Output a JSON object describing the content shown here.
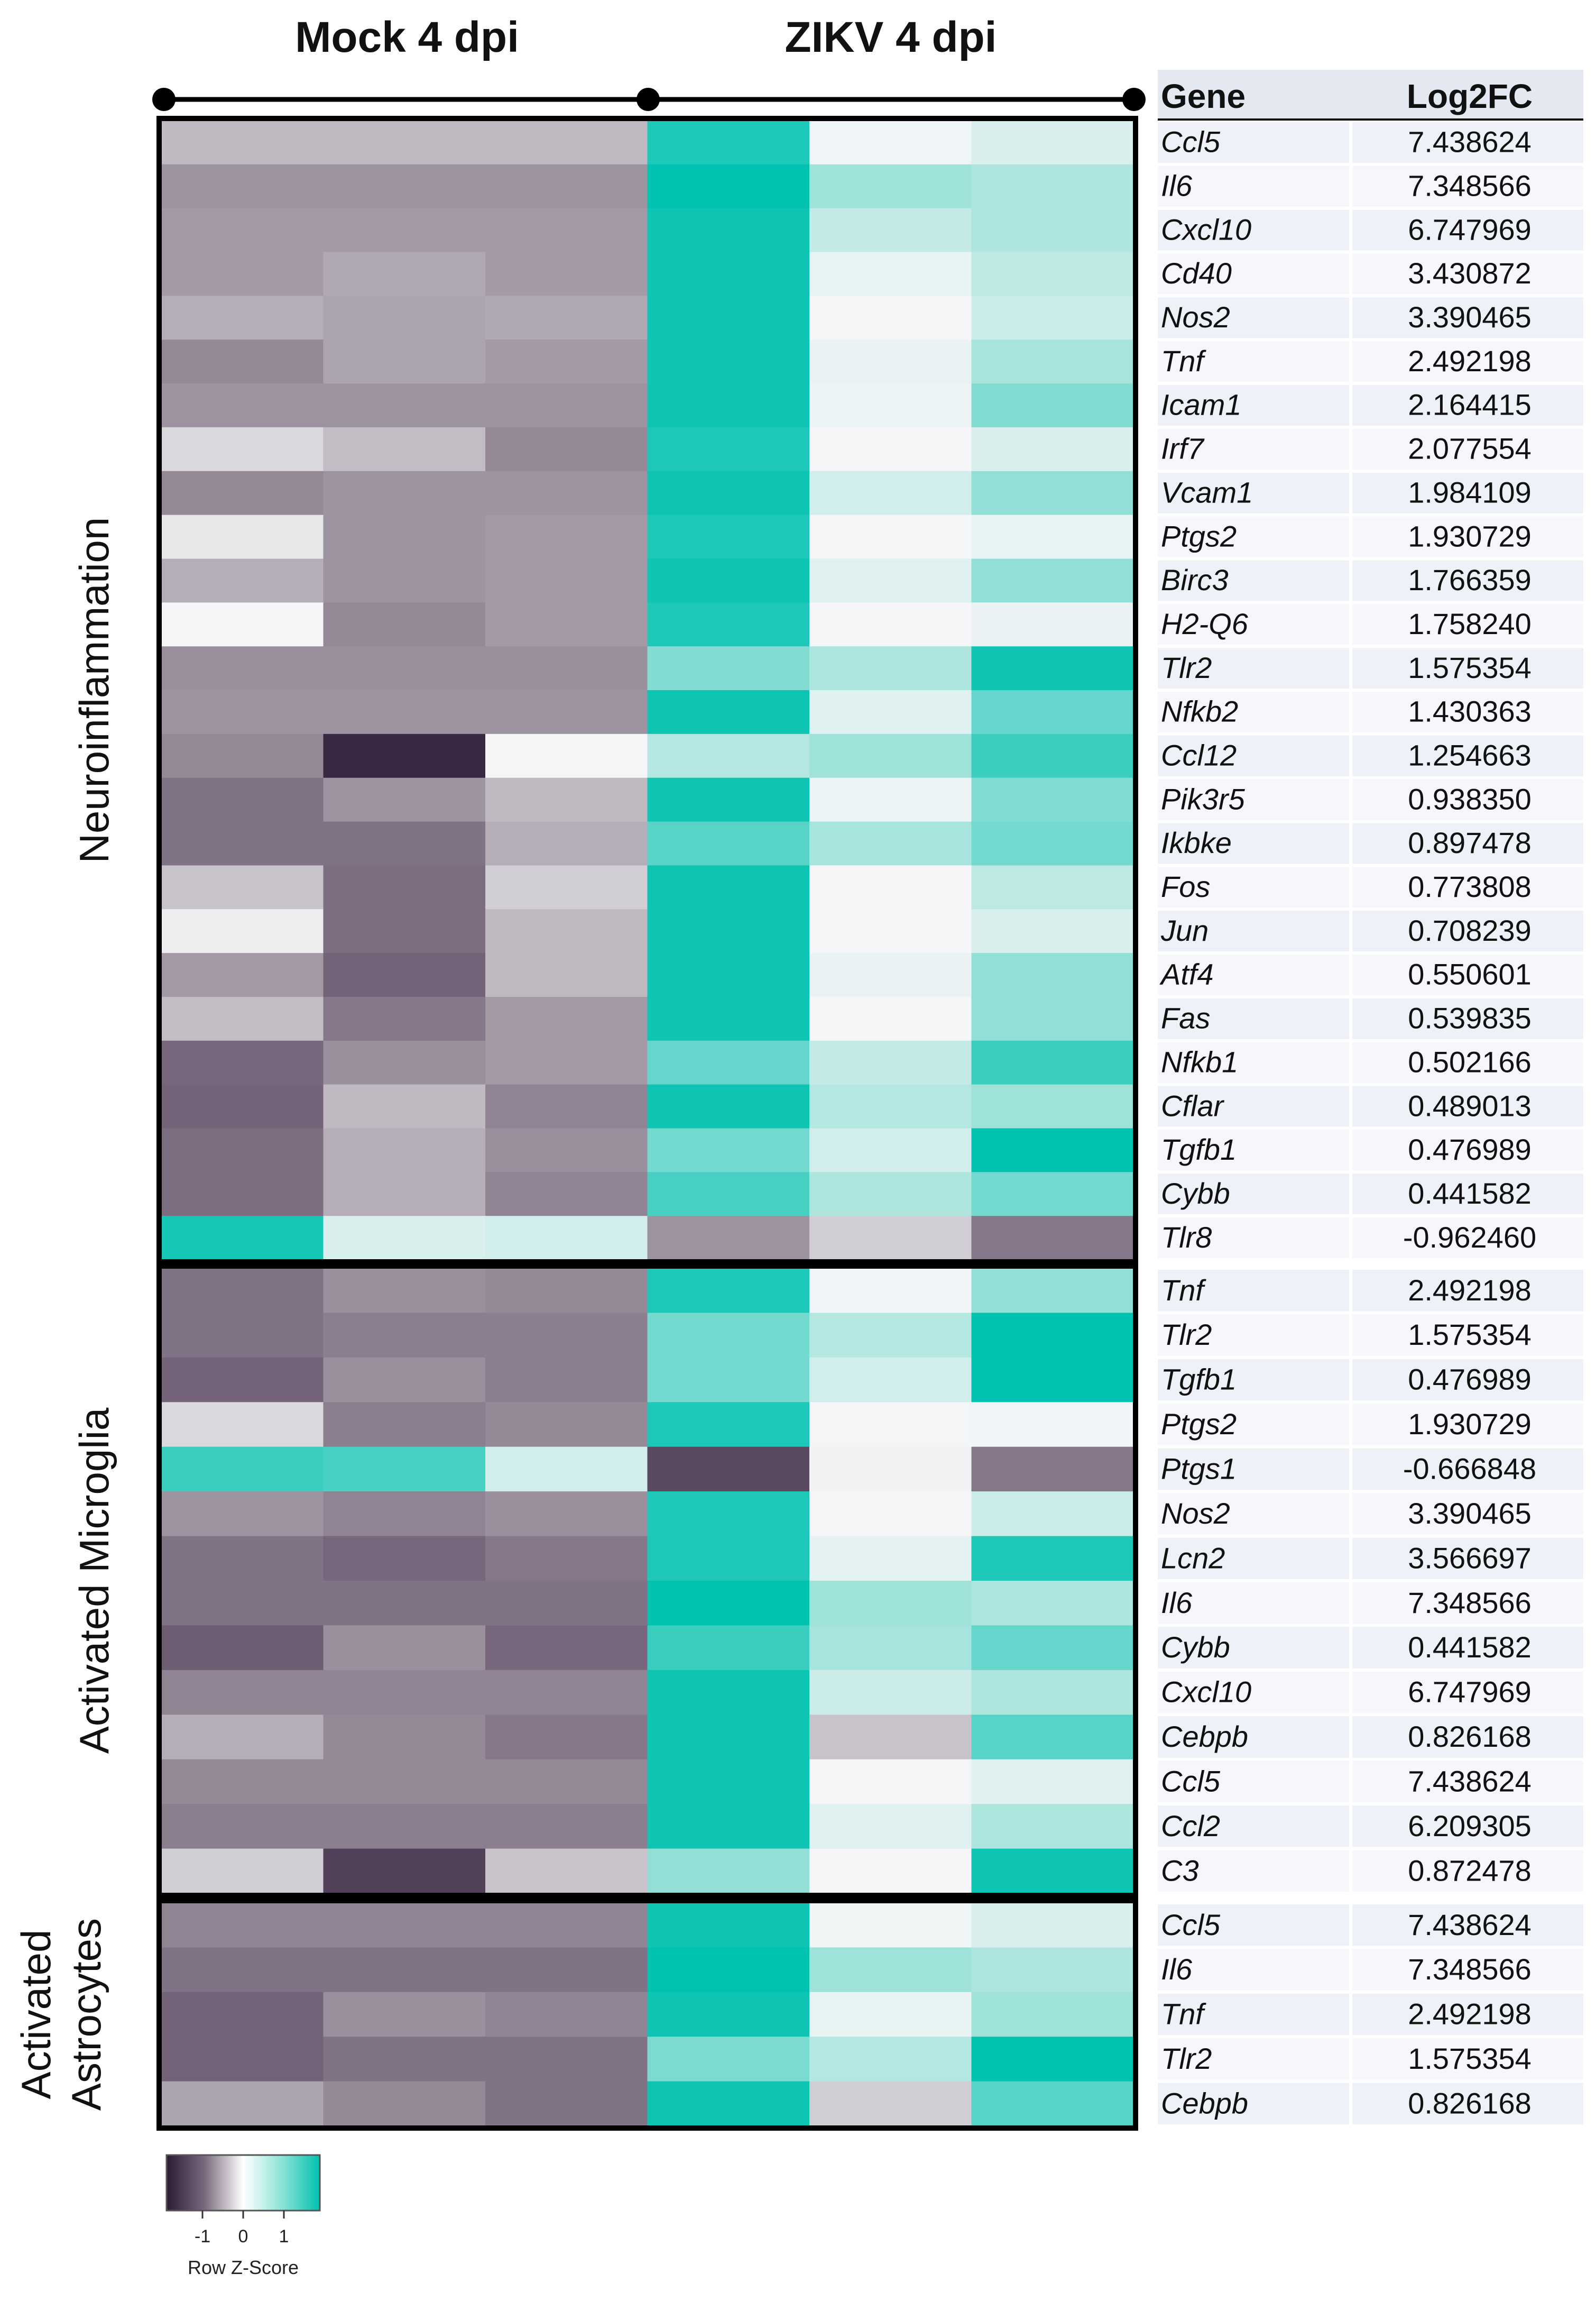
{
  "chart_data": {
    "type": "heatmap",
    "title": "",
    "group_headers": [
      "Mock 4 dpi",
      "ZIKV 4 dpi"
    ],
    "table_headers": {
      "gene": "Gene",
      "log2fc": "Log2FC"
    },
    "legend": {
      "title": "Row Z-Score",
      "ticks": [
        "-1",
        "0",
        "1"
      ],
      "colors": [
        "#2b1a33",
        "#ffffff",
        "#00c2b0"
      ],
      "range": [
        -1.7,
        1.7
      ]
    },
    "panels": [
      {
        "label": "Neuroinflammation",
        "rows": [
          {
            "gene": "Ccl5",
            "log2fc": "7.438624",
            "z": [
              -0.3,
              -0.3,
              -0.3,
              1.5,
              0.05,
              0.2
            ]
          },
          {
            "gene": "Il6",
            "log2fc": "7.348566",
            "z": [
              -0.5,
              -0.5,
              -0.5,
              1.7,
              0.6,
              0.5
            ]
          },
          {
            "gene": "Cxcl10",
            "log2fc": "6.747969",
            "z": [
              -0.45,
              -0.45,
              -0.45,
              1.6,
              0.35,
              0.5
            ]
          },
          {
            "gene": "Cd40",
            "log2fc": "3.430872",
            "z": [
              -0.45,
              -0.38,
              -0.45,
              1.6,
              0.1,
              0.4
            ]
          },
          {
            "gene": "Nos2",
            "log2fc": "3.390465",
            "z": [
              -0.35,
              -0.4,
              -0.38,
              1.6,
              0.0,
              0.3
            ]
          },
          {
            "gene": "Tnf",
            "log2fc": "2.492198",
            "z": [
              -0.6,
              -0.4,
              -0.45,
              1.6,
              0.08,
              0.55
            ]
          },
          {
            "gene": "Icam1",
            "log2fc": "2.164415",
            "z": [
              -0.5,
              -0.5,
              -0.5,
              1.6,
              0.06,
              0.8
            ]
          },
          {
            "gene": "Irf7",
            "log2fc": "2.077554",
            "z": [
              -0.15,
              -0.28,
              -0.6,
              1.5,
              0.0,
              0.2
            ]
          },
          {
            "gene": "Vcam1",
            "log2fc": "1.984109",
            "z": [
              -0.6,
              -0.5,
              -0.5,
              1.6,
              0.25,
              0.7
            ]
          },
          {
            "gene": "Ptgs2",
            "log2fc": "1.930729",
            "z": [
              -0.08,
              -0.5,
              -0.45,
              1.5,
              0.01,
              0.1
            ]
          },
          {
            "gene": "Birc3",
            "log2fc": "1.766359",
            "z": [
              -0.35,
              -0.5,
              -0.45,
              1.6,
              0.15,
              0.7
            ]
          },
          {
            "gene": "H2-Q6",
            "log2fc": "1.758240",
            "z": [
              0.0,
              -0.6,
              -0.45,
              1.5,
              0.0,
              0.08
            ]
          },
          {
            "gene": "Tlr2",
            "log2fc": "1.575354",
            "z": [
              -0.55,
              -0.55,
              -0.55,
              0.8,
              0.5,
              1.6
            ]
          },
          {
            "gene": "Nfkb2",
            "log2fc": "1.430363",
            "z": [
              -0.5,
              -0.5,
              -0.5,
              1.6,
              0.15,
              1.0
            ]
          },
          {
            "gene": "Ccl12",
            "log2fc": "1.254663",
            "z": [
              -0.6,
              -1.55,
              0.0,
              0.45,
              0.6,
              1.3
            ]
          },
          {
            "gene": "Pik3r5",
            "log2fc": "0.938350",
            "z": [
              -0.8,
              -0.5,
              -0.3,
              1.6,
              0.06,
              0.8
            ]
          },
          {
            "gene": "Ikbke",
            "log2fc": "0.897478",
            "z": [
              -0.8,
              -0.8,
              -0.35,
              1.1,
              0.55,
              0.9
            ]
          },
          {
            "gene": "Fos",
            "log2fc": "0.773808",
            "z": [
              -0.25,
              -0.85,
              -0.2,
              1.6,
              0.0,
              0.4
            ]
          },
          {
            "gene": "Jun",
            "log2fc": "0.708239",
            "z": [
              -0.05,
              -0.85,
              -0.3,
              1.6,
              0.0,
              0.2
            ]
          },
          {
            "gene": "Atf4",
            "log2fc": "0.550601",
            "z": [
              -0.45,
              -0.95,
              -0.3,
              1.6,
              0.08,
              0.7
            ]
          },
          {
            "gene": "Fas",
            "log2fc": "0.539835",
            "z": [
              -0.28,
              -0.75,
              -0.45,
              1.6,
              0.01,
              0.7
            ]
          },
          {
            "gene": "Nfkb1",
            "log2fc": "0.502166",
            "z": [
              -0.9,
              -0.55,
              -0.45,
              1.0,
              0.35,
              1.3
            ]
          },
          {
            "gene": "Cflar",
            "log2fc": "0.489013",
            "z": [
              -0.95,
              -0.3,
              -0.65,
              1.6,
              0.45,
              0.6
            ]
          },
          {
            "gene": "Tgfb1",
            "log2fc": "0.476989",
            "z": [
              -0.85,
              -0.35,
              -0.55,
              0.9,
              0.25,
              1.7
            ]
          },
          {
            "gene": "Cybb",
            "log2fc": "0.441582",
            "z": [
              -0.85,
              -0.35,
              -0.65,
              1.2,
              0.5,
              0.9
            ]
          },
          {
            "gene": "Tlr8",
            "log2fc": "-0.962460",
            "z": [
              1.55,
              0.2,
              0.25,
              -0.5,
              -0.2,
              -0.75
            ]
          }
        ]
      },
      {
        "label": "Activated Microglia",
        "rows": [
          {
            "gene": "Tnf",
            "log2fc": "2.492198",
            "z": [
              -0.8,
              -0.55,
              -0.6,
              1.5,
              0.05,
              0.7
            ]
          },
          {
            "gene": "Tlr2",
            "log2fc": "1.575354",
            "z": [
              -0.8,
              -0.7,
              -0.7,
              0.9,
              0.45,
              1.7
            ]
          },
          {
            "gene": "Tgfb1",
            "log2fc": "0.476989",
            "z": [
              -0.95,
              -0.55,
              -0.7,
              0.9,
              0.25,
              1.7
            ]
          },
          {
            "gene": "Ptgs2",
            "log2fc": "1.930729",
            "z": [
              -0.15,
              -0.7,
              -0.6,
              1.5,
              0.02,
              0.03
            ]
          },
          {
            "gene": "Ptgs1",
            "log2fc": "-0.666848",
            "z": [
              1.3,
              1.2,
              0.25,
              -1.2,
              -0.02,
              -0.75
            ]
          },
          {
            "gene": "Nos2",
            "log2fc": "3.390465",
            "z": [
              -0.5,
              -0.65,
              -0.55,
              1.5,
              0.0,
              0.3
            ]
          },
          {
            "gene": "Lcn2",
            "log2fc": "3.566697",
            "z": [
              -0.8,
              -0.9,
              -0.75,
              1.5,
              0.12,
              1.5
            ]
          },
          {
            "gene": "Il6",
            "log2fc": "7.348566",
            "z": [
              -0.8,
              -0.8,
              -0.8,
              1.7,
              0.6,
              0.5
            ]
          },
          {
            "gene": "Cybb",
            "log2fc": "0.441582",
            "z": [
              -1.0,
              -0.55,
              -0.9,
              1.3,
              0.55,
              1.0
            ]
          },
          {
            "gene": "Cxcl10",
            "log2fc": "6.747969",
            "z": [
              -0.65,
              -0.65,
              -0.65,
              1.6,
              0.3,
              0.5
            ]
          },
          {
            "gene": "Cebpb",
            "log2fc": "0.826168",
            "z": [
              -0.35,
              -0.6,
              -0.75,
              1.6,
              -0.25,
              1.1
            ]
          },
          {
            "gene": "Ccl5",
            "log2fc": "7.438624",
            "z": [
              -0.6,
              -0.6,
              -0.6,
              1.6,
              0.02,
              0.15
            ]
          },
          {
            "gene": "Ccl2",
            "log2fc": "6.209305",
            "z": [
              -0.7,
              -0.7,
              -0.7,
              1.6,
              0.15,
              0.5
            ]
          },
          {
            "gene": "C3",
            "log2fc": "0.872478",
            "z": [
              -0.2,
              -1.3,
              -0.25,
              0.7,
              0.0,
              1.6
            ]
          }
        ]
      },
      {
        "label": "Activated Astrocytes",
        "label_lines": [
          "Activated",
          "Astrocytes"
        ],
        "rows": [
          {
            "gene": "Ccl5",
            "log2fc": "7.438624",
            "z": [
              -0.65,
              -0.65,
              -0.65,
              1.6,
              0.04,
              0.2
            ]
          },
          {
            "gene": "Il6",
            "log2fc": "7.348566",
            "z": [
              -0.8,
              -0.8,
              -0.8,
              1.7,
              0.6,
              0.5
            ]
          },
          {
            "gene": "Tnf",
            "log2fc": "2.492198",
            "z": [
              -0.95,
              -0.55,
              -0.65,
              1.6,
              0.1,
              0.6
            ]
          },
          {
            "gene": "Tlr2",
            "log2fc": "1.575354",
            "z": [
              -0.95,
              -0.8,
              -0.8,
              0.85,
              0.45,
              1.7
            ]
          },
          {
            "gene": "Cebpb",
            "log2fc": "0.826168",
            "z": [
              -0.4,
              -0.6,
              -0.8,
              1.6,
              -0.2,
              1.1
            ]
          }
        ]
      }
    ]
  }
}
